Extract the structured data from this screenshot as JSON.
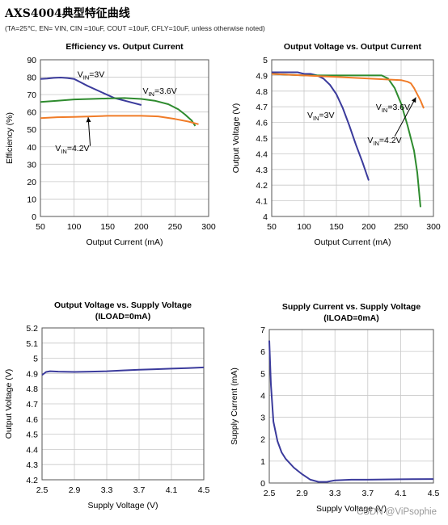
{
  "page": {
    "title": "AXS4004典型特征曲线",
    "subtitle": "(TA=25℃, EN= VIN, CIN =10uF, COUT =10uF, CFLY=10uF, unless otherwise noted)",
    "watermark": "CSDN @ViPsophie"
  },
  "chart_data": [
    {
      "type": "line",
      "title": "Efficiency  vs. Output Current",
      "xlabel": "Output Current (mA)",
      "ylabel": "Efficiency (%)",
      "xlim": [
        50,
        300
      ],
      "ylim": [
        0,
        90
      ],
      "xticks": [
        50,
        100,
        150,
        200,
        250,
        300
      ],
      "yticks": [
        0,
        10,
        20,
        30,
        40,
        50,
        60,
        70,
        80,
        90
      ],
      "grid": true,
      "series": [
        {
          "name": "VIN=3V",
          "color": "#3b3b9c",
          "x": [
            50,
            60,
            70,
            80,
            90,
            100,
            110,
            120,
            140,
            160,
            180,
            200
          ],
          "y": [
            79,
            79.2,
            79.6,
            79.8,
            79.5,
            79,
            77,
            75,
            71.5,
            68,
            66,
            64
          ]
        },
        {
          "name": "VIN=3.6V",
          "color": "#2e8b2e",
          "x": [
            50,
            75,
            100,
            125,
            150,
            175,
            200,
            220,
            240,
            255,
            265,
            275,
            280
          ],
          "y": [
            65.8,
            66.5,
            67.2,
            67.5,
            67.8,
            68,
            67.5,
            66.5,
            64.5,
            61.5,
            58.5,
            55,
            52
          ]
        },
        {
          "name": "VIN=4.2V",
          "color": "#f07c28",
          "x": [
            50,
            75,
            100,
            125,
            150,
            175,
            200,
            225,
            250,
            270,
            285
          ],
          "y": [
            56.5,
            57,
            57.2,
            57.5,
            57.8,
            57.8,
            57.8,
            57.5,
            56,
            54.5,
            53
          ]
        }
      ],
      "annotations": [
        {
          "base": "V",
          "sub": "IN",
          "rest": "=3V",
          "x": 105,
          "y": 80
        },
        {
          "base": "V",
          "sub": "IN",
          "rest": "=3.6V",
          "x": 202,
          "y": 70.5
        },
        {
          "base": "V",
          "sub": "IN",
          "rest": "=4.2V",
          "x": 72,
          "y": 37.5
        }
      ],
      "arrows": [
        {
          "from": [
            124,
            40.5
          ],
          "to": [
            121,
            57
          ]
        }
      ]
    },
    {
      "type": "line",
      "title": "Output Voltage   vs. Output Current",
      "xlabel": "Output Current (mA)",
      "ylabel": "Output Voltage  (V)",
      "xlim": [
        50,
        300
      ],
      "ylim": [
        4,
        5
      ],
      "xticks": [
        50,
        100,
        150,
        200,
        250,
        300
      ],
      "yticks": [
        4,
        4.1,
        4.2,
        4.3,
        4.4,
        4.5,
        4.6,
        4.7,
        4.8,
        4.9,
        5
      ],
      "grid": true,
      "series": [
        {
          "name": "VIN=3V",
          "color": "#3b3b9c",
          "x": [
            50,
            70,
            90,
            100,
            110,
            120,
            130,
            140,
            150,
            160,
            170,
            180,
            190,
            200
          ],
          "y": [
            4.92,
            4.92,
            4.92,
            4.91,
            4.91,
            4.9,
            4.88,
            4.84,
            4.78,
            4.69,
            4.58,
            4.46,
            4.35,
            4.23
          ]
        },
        {
          "name": "VIN=3.6V",
          "color": "#2e8b2e",
          "x": [
            50,
            100,
            150,
            200,
            220,
            230,
            240,
            250,
            260,
            270,
            275,
            280
          ],
          "y": [
            4.91,
            4.9,
            4.9,
            4.9,
            4.9,
            4.88,
            4.82,
            4.72,
            4.58,
            4.42,
            4.28,
            4.06
          ]
        },
        {
          "name": "VIN=4.2V",
          "color": "#f07c28",
          "x": [
            50,
            100,
            150,
            200,
            250,
            260,
            265,
            270,
            275,
            280,
            285
          ],
          "y": [
            4.91,
            4.9,
            4.89,
            4.88,
            4.87,
            4.86,
            4.85,
            4.82,
            4.78,
            4.74,
            4.69
          ]
        }
      ],
      "annotations": [
        {
          "base": "V",
          "sub": "IN",
          "rest": "=3V",
          "x": 105,
          "y": 4.63
        },
        {
          "base": "V",
          "sub": "IN",
          "rest": "=3.6V",
          "x": 211,
          "y": 4.68
        },
        {
          "base": "V",
          "sub": "IN",
          "rest": "=4.2V",
          "x": 198,
          "y": 4.47
        }
      ],
      "arrows": [
        {
          "from": [
            240,
            4.51
          ],
          "to": [
            273,
            4.76
          ]
        }
      ]
    },
    {
      "type": "line",
      "title": "Output Voltage vs. Supply Voltage",
      "subtitle": "(ILOAD=0mA)",
      "xlabel": "Supply Voltage (V)",
      "ylabel": "Output Voltage (V)",
      "xlim": [
        2.5,
        4.5
      ],
      "ylim": [
        4.2,
        5.2
      ],
      "xticks": [
        2.5,
        2.9,
        3.3,
        3.7,
        4.1,
        4.5
      ],
      "yticks": [
        4.2,
        4.3,
        4.4,
        4.5,
        4.6,
        4.7,
        4.8,
        4.9,
        5,
        5.1,
        5.2
      ],
      "grid": true,
      "series": [
        {
          "name": "",
          "color": "#3b3b9c",
          "x": [
            2.5,
            2.55,
            2.6,
            2.7,
            2.9,
            3.1,
            3.3,
            3.5,
            3.7,
            3.9,
            4.1,
            4.3,
            4.5
          ],
          "y": [
            4.89,
            4.91,
            4.915,
            4.912,
            4.91,
            4.912,
            4.915,
            4.92,
            4.925,
            4.928,
            4.932,
            4.935,
            4.94
          ]
        }
      ]
    },
    {
      "type": "line",
      "title": "Supply Current vs. Supply Voltage",
      "subtitle": "(ILOAD=0mA)",
      "xlabel": "Supply Voltage (V)",
      "ylabel": "Supply Current (mA)",
      "xlim": [
        2.5,
        4.5
      ],
      "ylim": [
        0,
        7
      ],
      "xticks": [
        2.5,
        2.9,
        3.3,
        3.7,
        4.1,
        4.5
      ],
      "yticks": [
        0,
        1,
        2,
        3,
        4,
        5,
        6,
        7
      ],
      "grid": true,
      "series": [
        {
          "name": "",
          "color": "#3b3b9c",
          "x": [
            2.5,
            2.52,
            2.55,
            2.6,
            2.65,
            2.7,
            2.8,
            2.9,
            3.0,
            3.1,
            3.2,
            3.3,
            3.5,
            3.7,
            4.1,
            4.5
          ],
          "y": [
            6.5,
            4.5,
            2.8,
            1.9,
            1.4,
            1.1,
            0.7,
            0.4,
            0.15,
            0.05,
            0.05,
            0.12,
            0.15,
            0.15,
            0.17,
            0.18
          ]
        }
      ]
    }
  ]
}
